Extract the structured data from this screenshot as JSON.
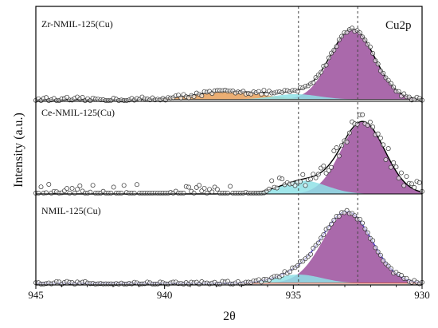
{
  "chart_data": {
    "type": "line",
    "corner_label": "Cu2p",
    "xlabel": "2θ",
    "ylabel": "Intensity (a.u.)",
    "xlim": [
      945,
      930
    ],
    "x_reversed": true,
    "x_ticks": [
      945,
      940,
      935,
      930
    ],
    "reference_lines": [
      934.8,
      932.5
    ],
    "panels": [
      {
        "label": "Zr-NMIL-125(Cu)",
        "baseline": 0.02,
        "noise": 0.02,
        "components": [
          {
            "name": "main-peak",
            "center": 932.7,
            "width": 0.85,
            "height": 0.78,
            "color": "#9b4f9c"
          },
          {
            "name": "satellite",
            "center": 937.5,
            "width": 1.3,
            "height": 0.09,
            "color": "#e8a05a"
          },
          {
            "name": "shoulder",
            "center": 934.9,
            "width": 0.9,
            "height": 0.06,
            "color": "#8fe2e6"
          }
        ],
        "envelope_color": "#000000"
      },
      {
        "label": "Ce-NMIL-125(Cu)",
        "baseline": 0.0,
        "noise": 0.08,
        "components": [
          {
            "name": "main-peak",
            "center": 932.3,
            "width": 0.85,
            "height": 0.82,
            "color": "#9b4f9c"
          },
          {
            "name": "shoulder",
            "center": 934.6,
            "width": 0.9,
            "height": 0.15,
            "color": "#8fe2e6"
          }
        ],
        "envelope_color": "#000000"
      },
      {
        "label": "NMIL-125(Cu)",
        "baseline": 0.02,
        "noise": 0.02,
        "components": [
          {
            "name": "main-peak",
            "center": 932.9,
            "width": 0.95,
            "height": 0.82,
            "color": "#9b4f9c"
          },
          {
            "name": "shoulder",
            "center": 934.8,
            "width": 0.9,
            "height": 0.1,
            "color": "#8fe2e6"
          }
        ],
        "envelope_color": "#4a3fc9"
      }
    ]
  }
}
